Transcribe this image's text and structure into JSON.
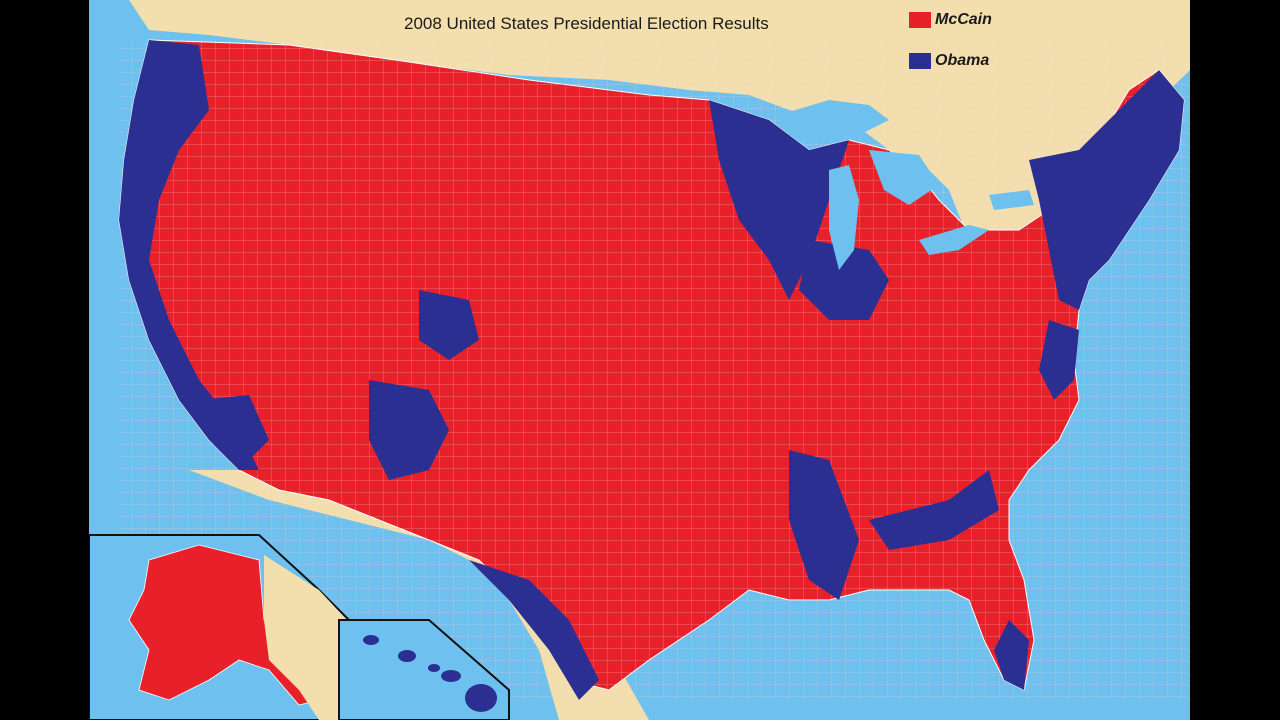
{
  "title": "2008 United States Presidential Election Results",
  "legend": [
    {
      "label": "McCain",
      "color": "#e8202a"
    },
    {
      "label": "Obama",
      "color": "#2b2f92"
    }
  ],
  "colors": {
    "ocean": "#6ec1ee",
    "land": "#f3dfae",
    "mccain": "#e8202a",
    "obama": "#2b2f92",
    "border": "#f6d6d6"
  }
}
